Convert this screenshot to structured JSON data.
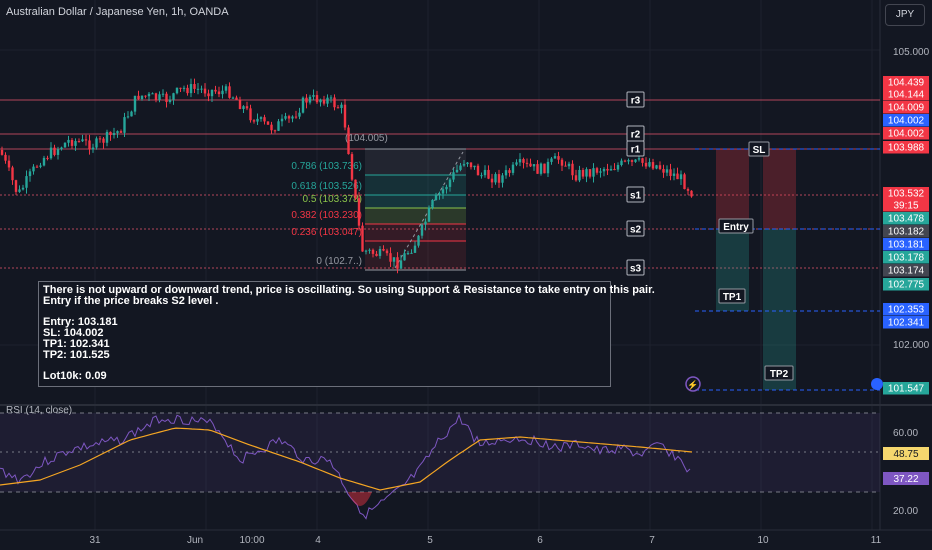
{
  "header": {
    "title": "Australian Dollar / Japanese Yen, 1h, OANDA",
    "currency_button": "JPY"
  },
  "colors": {
    "background": "#131722",
    "up": "#26a69a",
    "down": "#f23645",
    "grid": "#1e222d",
    "rsi_line": "#7e57c2",
    "rsi_ma": "#f5a623",
    "level_line": "#b2465a",
    "accent_blue": "#2962ff"
  },
  "price_axis": {
    "ticks": [
      "105.000",
      "102.000",
      "60.00",
      "20.00"
    ],
    "tags": [
      {
        "text": "104.439",
        "color": "#f23645"
      },
      {
        "text": "104.144",
        "color": "#f23645"
      },
      {
        "text": "104.009",
        "color": "#f23645"
      },
      {
        "text": "104.002",
        "color": "#2962ff"
      },
      {
        "text": "104.002",
        "color": "#f23645"
      },
      {
        "text": "103.988",
        "color": "#f23645"
      },
      {
        "text": "103.532",
        "color": "#f23645"
      },
      {
        "text": "39:15",
        "color": "#f23645"
      },
      {
        "text": "103.478",
        "color": "#26a69a"
      },
      {
        "text": "103.182",
        "color": "#434651"
      },
      {
        "text": "103.181",
        "color": "#2962ff"
      },
      {
        "text": "103.178",
        "color": "#26a69a"
      },
      {
        "text": "103.174",
        "color": "#434651"
      },
      {
        "text": "102.775",
        "color": "#26a69a"
      },
      {
        "text": "102.353",
        "color": "#2962ff"
      },
      {
        "text": "102.341",
        "color": "#2962ff"
      },
      {
        "text": "101.547",
        "color": "#26a69a"
      }
    ],
    "rsi_tags": [
      {
        "text": "48.75",
        "color": "#f5d76e",
        "fg": "#131722"
      },
      {
        "text": "37.22",
        "color": "#7e57c2",
        "fg": "#ffffff"
      }
    ]
  },
  "time_axis": [
    "31",
    "Jun",
    "10:00",
    "4",
    "5",
    "6",
    "7",
    "10",
    "11"
  ],
  "levels": [
    "r3",
    "r2",
    "r1",
    "s1",
    "s2",
    "s3"
  ],
  "fib": [
    {
      "label": "0.786 (103.736)",
      "color": "#26a69a"
    },
    {
      "label": "0.618 (103.526)",
      "color": "#26a69a"
    },
    {
      "label": "0.5 (103.378)",
      "color": "#8bc34a"
    },
    {
      "label": "0.382 (103.230)",
      "color": "#f23645"
    },
    {
      "label": "0.236 (103.047)",
      "color": "#f23645"
    },
    {
      "label": "0 (102.7..)",
      "color": "#9598a1"
    }
  ],
  "fib_top_label": "(104.005)",
  "trade_labels": {
    "sl": "SL",
    "entry": "Entry",
    "tp1": "TP1",
    "tp2": "TP2"
  },
  "rsi": {
    "label": "RSI (14, close)"
  },
  "note": {
    "line1": "There is not upward or downward trend, price is oscillating. So using Support & Resistance to take entry on this pair.",
    "line2": "Entry if the price breaks S2 level .",
    "entry": "Entry: 103.181",
    "sl": "SL: 104.002",
    "tp1": "TP1: 102.341",
    "tp2": "TP2: 101.525",
    "lot": "Lot10k: 0.09"
  }
}
